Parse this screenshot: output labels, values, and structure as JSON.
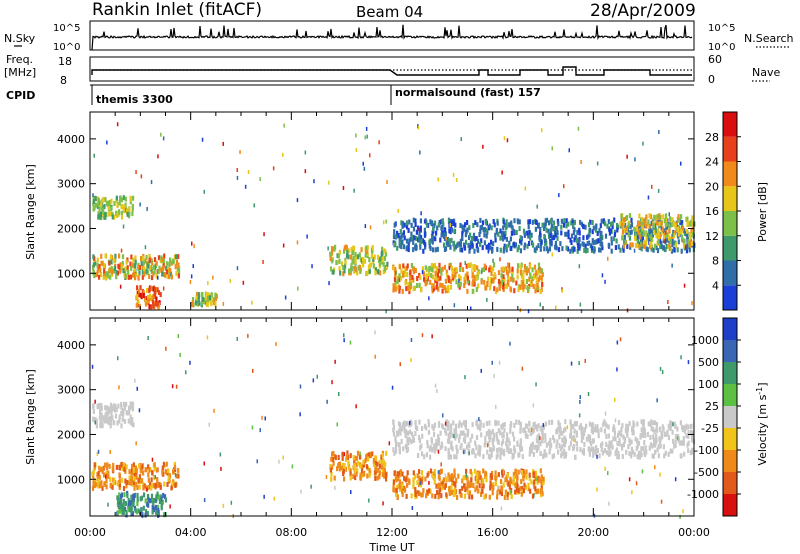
{
  "header": {
    "station": "Rankin Inlet (fitACF)",
    "beam": "Beam 04",
    "date": "28/Apr/2009"
  },
  "noise_panel": {
    "left_label": "N.Sky",
    "right_label": "N.Search",
    "left_ticks": [
      "10^5",
      "10^0"
    ],
    "right_ticks": [
      "10^5",
      "10^0"
    ]
  },
  "freq_panel": {
    "left_label_top": "Freq.",
    "left_label_bottom": "[MHz]",
    "right_label": "Nave",
    "left_ticks": [
      "18",
      "8"
    ],
    "right_ticks": [
      "60",
      "0"
    ]
  },
  "cpid": {
    "label": "CPID",
    "modes": [
      {
        "name": "themis 3300",
        "start_hour": 0
      },
      {
        "name": "normalsound (fast) 157",
        "start_hour": 12
      }
    ]
  },
  "x_axis": {
    "title": "Time UT",
    "range_hours": [
      0,
      24
    ],
    "tick_labels": [
      "00:00",
      "04:00",
      "08:00",
      "12:00",
      "16:00",
      "20:00",
      "00:00"
    ]
  },
  "chart_data": [
    {
      "type": "heatmap",
      "name": "power",
      "ylabel": "Slant Range [km]",
      "ylim": [
        180,
        4600
      ],
      "yticks": [
        1000,
        2000,
        3000,
        4000
      ],
      "xlim_hours": [
        0,
        24
      ],
      "colorbar_label": "Power [dB]",
      "colorbar_ticks": [
        "4",
        "8",
        "12",
        "16",
        "20",
        "24",
        "28"
      ],
      "colors": [
        "#1a3fd6",
        "#2f6ea8",
        "#3e9a6a",
        "#7cc04a",
        "#e6c619",
        "#f08a1c",
        "#e8401a",
        "#d90f0f"
      ],
      "regions": [
        {
          "t": [
            0.05,
            1.7
          ],
          "r": [
            2250,
            2700
          ],
          "level": [
            2,
            4
          ]
        },
        {
          "t": [
            0.05,
            3.5
          ],
          "r": [
            900,
            1400
          ],
          "level": [
            2,
            6
          ]
        },
        {
          "t": [
            1.8,
            2.8
          ],
          "r": [
            250,
            700
          ],
          "level": [
            4,
            7
          ]
        },
        {
          "t": [
            4.0,
            5.0
          ],
          "r": [
            300,
            550
          ],
          "level": [
            2,
            5
          ]
        },
        {
          "t": [
            9.5,
            11.8
          ],
          "r": [
            1000,
            1600
          ],
          "level": [
            2,
            5
          ]
        },
        {
          "t": [
            12.0,
            18.0
          ],
          "r": [
            600,
            1200
          ],
          "level": [
            3,
            6
          ]
        },
        {
          "t": [
            12.0,
            24.0
          ],
          "r": [
            1500,
            2200
          ],
          "level": [
            0,
            2
          ]
        },
        {
          "t": [
            21.0,
            24.0
          ],
          "r": [
            1600,
            2300
          ],
          "level": [
            3,
            5
          ]
        }
      ]
    },
    {
      "type": "heatmap",
      "name": "velocity",
      "ylabel": "Slant Range [km]",
      "ylim": [
        180,
        4600
      ],
      "yticks": [
        1000,
        2000,
        3000,
        4000
      ],
      "xlim_hours": [
        0,
        24
      ],
      "colorbar_label": "Velocity [m s^-1]",
      "colorbar_ticks": [
        "1000",
        "500",
        "100",
        "25",
        "-25",
        "-100",
        "-500",
        "-1000"
      ],
      "colors": [
        "#1e40c8",
        "#3a66b6",
        "#3e9a6a",
        "#5cc040",
        "#c9c9c9",
        "#f0c419",
        "#ef8a1a",
        "#e25a1a",
        "#d81010"
      ],
      "regions": [
        {
          "t": [
            0.05,
            1.7
          ],
          "r": [
            2200,
            2700
          ],
          "level": [
            4,
            4
          ]
        },
        {
          "t": [
            0.05,
            3.5
          ],
          "r": [
            800,
            1350
          ],
          "level": [
            5,
            7
          ]
        },
        {
          "t": [
            1.0,
            3.0
          ],
          "r": [
            200,
            700
          ],
          "level": [
            1,
            3
          ]
        },
        {
          "t": [
            9.5,
            11.8
          ],
          "r": [
            1000,
            1600
          ],
          "level": [
            5,
            7
          ]
        },
        {
          "t": [
            12.0,
            18.0
          ],
          "r": [
            600,
            1200
          ],
          "level": [
            5,
            7
          ]
        },
        {
          "t": [
            12.0,
            24.0
          ],
          "r": [
            1500,
            2300
          ],
          "level": [
            4,
            4
          ]
        }
      ]
    }
  ]
}
